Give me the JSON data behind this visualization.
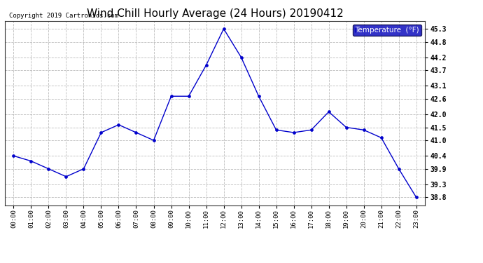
{
  "title": "Wind Chill Hourly Average (24 Hours) 20190412",
  "copyright": "Copyright 2019 Cartronics.com",
  "legend_label": "Temperature  (°F)",
  "hours": [
    "00:00",
    "01:00",
    "02:00",
    "03:00",
    "04:00",
    "05:00",
    "06:00",
    "07:00",
    "08:00",
    "09:00",
    "10:00",
    "11:00",
    "12:00",
    "13:00",
    "14:00",
    "15:00",
    "16:00",
    "17:00",
    "18:00",
    "19:00",
    "20:00",
    "21:00",
    "22:00",
    "23:00"
  ],
  "values": [
    40.4,
    40.2,
    39.9,
    39.6,
    39.9,
    41.3,
    41.6,
    41.3,
    41.0,
    42.7,
    42.7,
    43.9,
    45.3,
    44.2,
    42.7,
    41.4,
    41.3,
    41.4,
    42.1,
    41.5,
    41.4,
    41.1,
    39.9,
    38.8
  ],
  "ylim": [
    38.5,
    45.6
  ],
  "yticks": [
    38.8,
    39.3,
    39.9,
    40.4,
    41.0,
    41.5,
    42.0,
    42.6,
    43.1,
    43.7,
    44.2,
    44.8,
    45.3
  ],
  "line_color": "#0000cc",
  "marker_color": "#0000cc",
  "grid_color": "#aaaaaa",
  "bg_color": "#ffffff",
  "title_fontsize": 11,
  "legend_bg": "#0000bb",
  "legend_fg": "#ffffff"
}
